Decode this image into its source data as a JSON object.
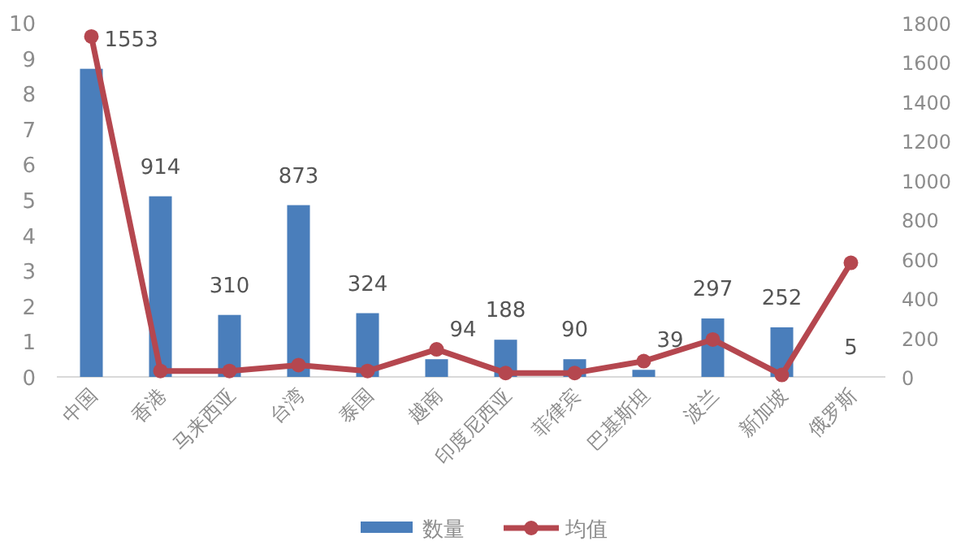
{
  "chart_data": {
    "type": "bar",
    "categories": [
      "中国",
      "香港",
      "马来西亚",
      "台湾",
      "泰国",
      "越南",
      "印度尼西亚",
      "菲律宾",
      "巴基斯坦",
      "波兰",
      "新加坡",
      "俄罗斯"
    ],
    "series": [
      {
        "name": "数量",
        "color": "#4a7ebb",
        "values": [
          8.7,
          5.1,
          1.75,
          4.85,
          1.8,
          0.5,
          1.05,
          0.5,
          0.2,
          1.65,
          1.4,
          0
        ]
      },
      {
        "name": "均值",
        "type": "line",
        "axis": "y2",
        "color": "#b5474f",
        "marker": "circle",
        "values": [
          1730,
          30,
          30,
          60,
          30,
          140,
          20,
          20,
          80,
          190,
          10,
          580
        ]
      }
    ],
    "annotations": [
      {
        "text": "1553",
        "x": "中国",
        "y": 8.7
      },
      {
        "text": "914",
        "x": "香港",
        "y": 5.1
      },
      {
        "text": "310",
        "x": "马来西亚",
        "y": 1.75
      },
      {
        "text": "873",
        "x": "台湾",
        "y": 4.85
      },
      {
        "text": "324",
        "x": "泰国",
        "y": 1.8
      },
      {
        "text": "94",
        "x": "越南",
        "y": 0.5
      },
      {
        "text": "188",
        "x": "印度尼西亚",
        "y": 1.05
      },
      {
        "text": "90",
        "x": "菲律宾",
        "y": 0.5
      },
      {
        "text": "39",
        "x": "巴基斯坦",
        "y": 0.2
      },
      {
        "text": "297",
        "x": "波兰",
        "y": 1.65
      },
      {
        "text": "252",
        "x": "新加坡",
        "y": 1.4
      },
      {
        "text": "5",
        "x": "俄罗斯",
        "y": 0
      }
    ],
    "ylim": [
      0,
      10
    ],
    "yticks": [
      0,
      1,
      2,
      3,
      4,
      5,
      6,
      7,
      8,
      9,
      10
    ],
    "y2lim": [
      0,
      1800
    ],
    "y2ticks": [
      0,
      200,
      400,
      600,
      800,
      1000,
      1200,
      1400,
      1600,
      1800
    ],
    "legend": "bottom",
    "grid": false
  }
}
